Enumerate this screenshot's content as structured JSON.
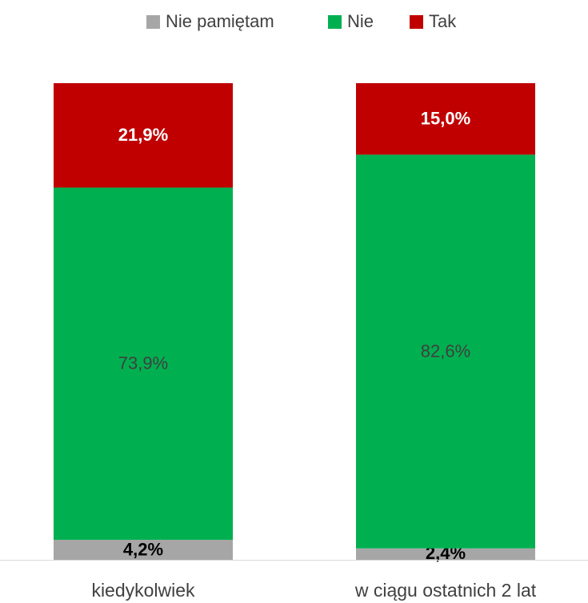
{
  "chart_data": {
    "type": "stacked_bar",
    "categories": [
      "kiedykolwiek",
      "w ciągu ostatnich 2 lat"
    ],
    "series": [
      {
        "name": "Nie pamiętam",
        "color": "#a6a6a6",
        "values": [
          4.2,
          2.4
        ],
        "value_labels": [
          "4,2%",
          "2,4%"
        ]
      },
      {
        "name": "Nie",
        "color": "#00b050",
        "values": [
          73.9,
          82.6
        ],
        "value_labels": [
          "73,9%",
          "82,6%"
        ]
      },
      {
        "name": "Tak",
        "color": "#c00000",
        "values": [
          21.9,
          15.0
        ],
        "value_labels": [
          "21,9%",
          "15,0%"
        ]
      }
    ]
  }
}
